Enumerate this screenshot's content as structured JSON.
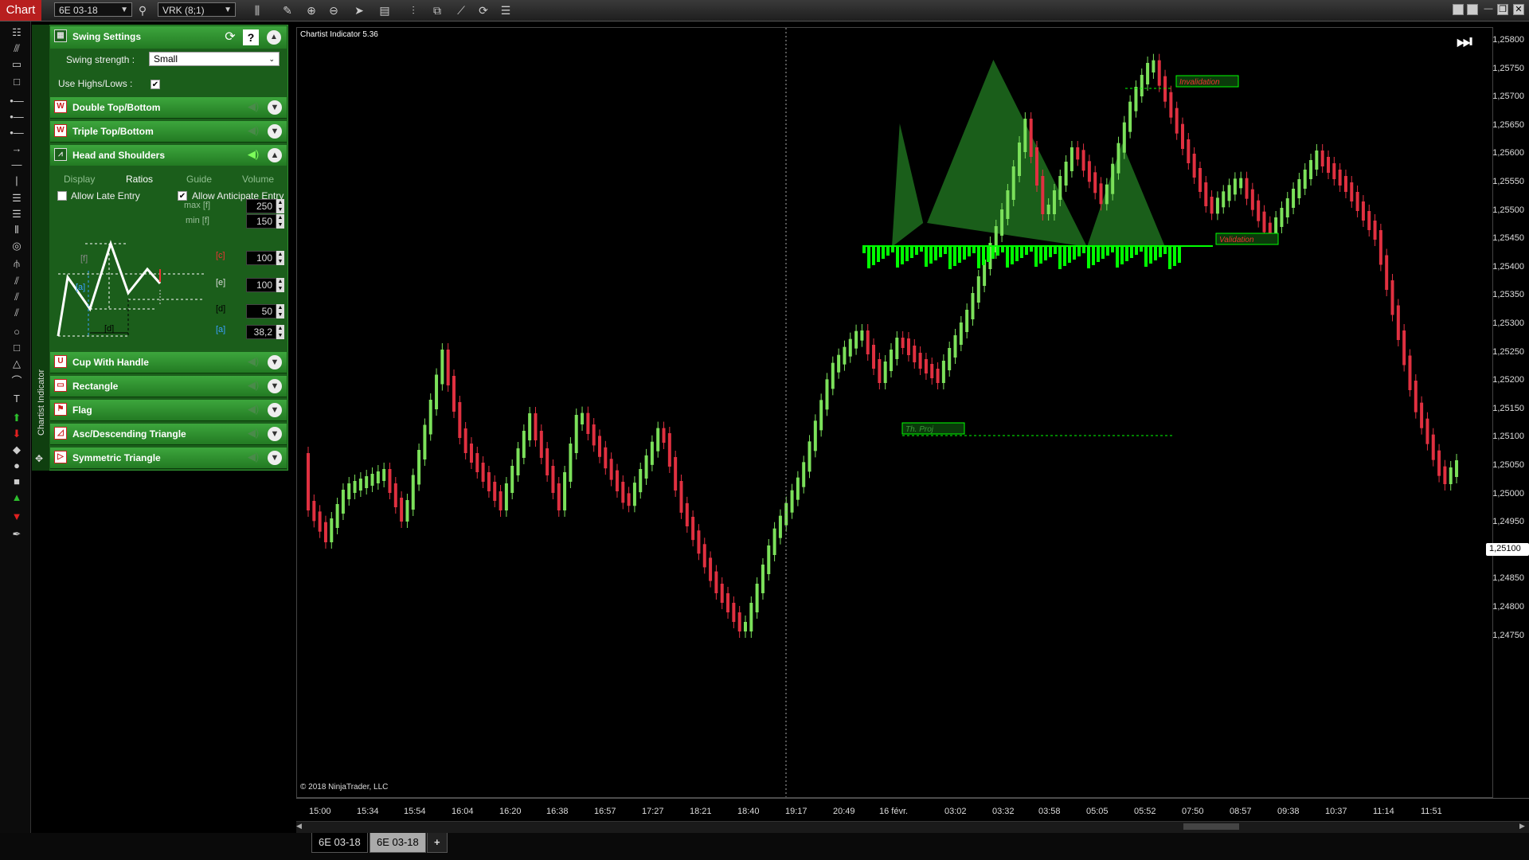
{
  "window": {
    "chart_tab": "Chart",
    "instrument": "6E 03-18",
    "bar_type": "VRK (8;1)"
  },
  "panel": {
    "side_label": "Chartist Indicator",
    "swing": {
      "title": "Swing Settings",
      "strength_label": "Swing strength :",
      "strength_value": "Small",
      "highs_lows_label": "Use Highs/Lows :"
    },
    "sections_top": [
      {
        "label": "Double Top/Bottom"
      },
      {
        "label": "Triple Top/Bottom"
      },
      {
        "label": "Head and Shoulders"
      }
    ],
    "hs_tabs": [
      "Display",
      "Ratios",
      "Guide",
      "Volume"
    ],
    "allow_late": "Allow Late Entry",
    "allow_anticipate": "Allow Anticipate Entry",
    "ratios": {
      "max_label": "max [f]",
      "min_label": "min [f]",
      "max_f": "250",
      "min_f": "150",
      "c_label": "[c]",
      "c_value": "100",
      "e_label": "[e]",
      "e_value": "100",
      "d_label": "[d]",
      "d_value": "50",
      "a_label": "[a]",
      "a_value": "38,2"
    },
    "diagram_labels": {
      "f": "[f]",
      "c": "[c]",
      "a": "[a]",
      "d": "[d]",
      "e": "[e]"
    },
    "sections_bottom": [
      {
        "label": "Cup With Handle"
      },
      {
        "label": "Rectangle"
      },
      {
        "label": "Flag"
      },
      {
        "label": "Asc/Descending Triangle"
      },
      {
        "label": "Symmetric Triangle"
      }
    ]
  },
  "chart": {
    "title": "Chartist Indicator 5.36",
    "copyright": "© 2018 NinjaTrader, LLC",
    "invalidation_label": "Invalidation",
    "validation_label": "Validation",
    "th_proj_label": "Th. Proj",
    "current_price": "1,25100",
    "colors": {
      "up": "#7be05a",
      "down": "#e03040",
      "pattern": "#1f6e1f",
      "line": "#00ff00"
    }
  },
  "price_axis": [
    "1,25800",
    "1,25750",
    "1,25700",
    "1,25650",
    "1,25600",
    "1,25550",
    "1,25500",
    "1,25450",
    "1,25400",
    "1,25350",
    "1,25300",
    "1,25250",
    "1,25200",
    "1,25150",
    "1,25100",
    "1,25050",
    "1,25000",
    "1,24950",
    "1,24900",
    "1,24850",
    "1,24800",
    "1,24750"
  ],
  "time_axis": [
    "15:00",
    "15:34",
    "15:54",
    "16:04",
    "16:20",
    "16:38",
    "16:57",
    "17:27",
    "18:21",
    "18:40",
    "19:17",
    "20:49",
    "16 févr.",
    "03:02",
    "03:32",
    "03:58",
    "05:05",
    "05:52",
    "07:50",
    "08:57",
    "09:38",
    "10:37",
    "11:14",
    "11:51"
  ],
  "bottom_tabs": [
    "6E 03-18",
    "6E 03-18",
    "+"
  ]
}
